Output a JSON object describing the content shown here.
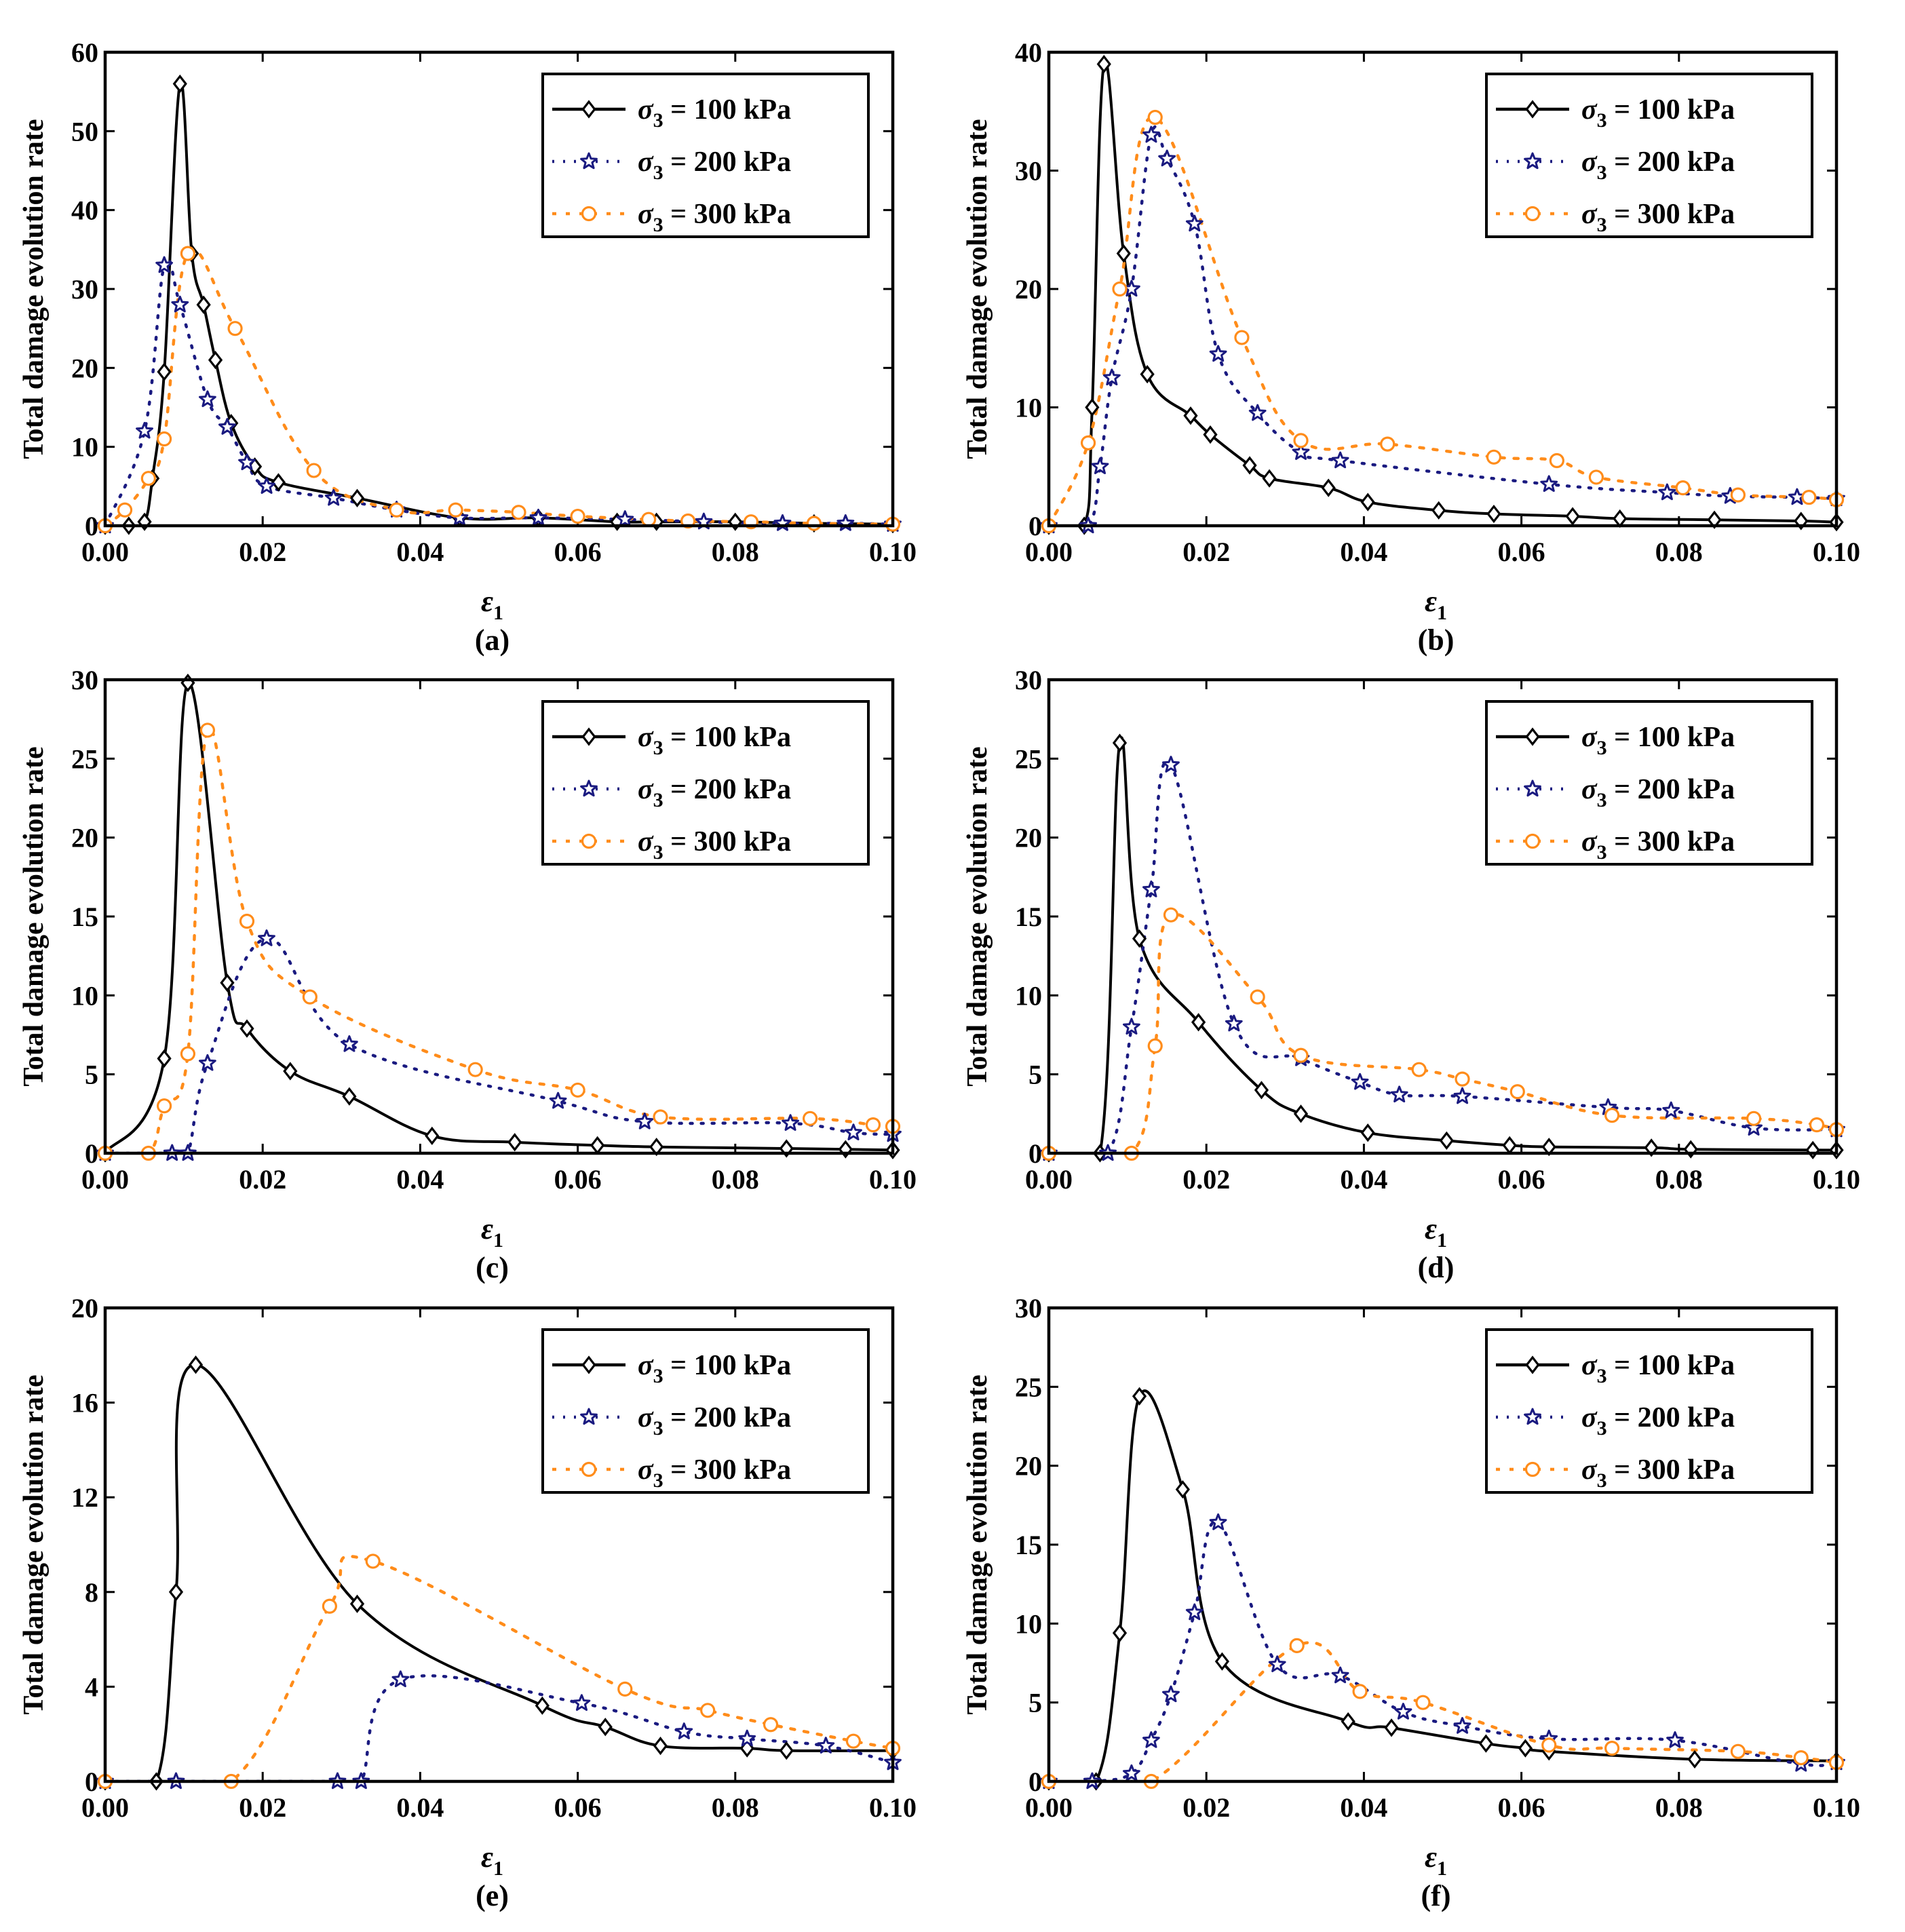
{
  "figure": {
    "colors": {
      "s100": "#000000",
      "s200": "#1a1a80",
      "s300": "#ff8c1a"
    },
    "legend_prefix": "σ",
    "legend_sub": "3",
    "xlabel_symbol": "ε",
    "xlabel_sub": "1"
  },
  "chart_data": [
    {
      "type": "line",
      "panel_label": "(a)",
      "ylabel": "Total damage evolution rate",
      "xlim": [
        0,
        0.1
      ],
      "ylim": [
        0,
        60
      ],
      "xticks": [
        "0.00",
        "0.02",
        "0.04",
        "0.06",
        "0.08",
        "0.10"
      ],
      "yticks": [
        "0",
        "10",
        "20",
        "30",
        "40",
        "50",
        "60"
      ],
      "series": [
        {
          "name": "σ3 = 100 kPa",
          "legend": " = 100 kPa",
          "marker": "diamond",
          "x": [
            0,
            0.003,
            0.005,
            0.006,
            0.0075,
            0.0095,
            0.011,
            0.0125,
            0.014,
            0.016,
            0.019,
            0.022,
            0.032,
            0.045,
            0.055,
            0.065,
            0.07,
            0.08,
            0.09,
            0.1
          ],
          "y": [
            0,
            0,
            0.5,
            6,
            19.5,
            56,
            34.5,
            28,
            21,
            13,
            7.5,
            5.5,
            3.5,
            1,
            1,
            0.5,
            0.5,
            0.5,
            0.3,
            0.2
          ]
        },
        {
          "name": "σ3 = 200 kPa",
          "legend": " = 200 kPa",
          "marker": "star",
          "x": [
            0,
            0.005,
            0.0075,
            0.0095,
            0.013,
            0.0155,
            0.018,
            0.0205,
            0.029,
            0.037,
            0.045,
            0.055,
            0.066,
            0.076,
            0.086,
            0.094,
            0.1
          ],
          "y": [
            0,
            12,
            33,
            28,
            16,
            12.5,
            8,
            5,
            3.5,
            2,
            1,
            1,
            0.8,
            0.5,
            0.3,
            0.3,
            0.2
          ]
        },
        {
          "name": "σ3 = 300 kPa",
          "legend": " = 300 kPa",
          "marker": "circle",
          "x": [
            0,
            0.0025,
            0.0055,
            0.0075,
            0.0105,
            0.0165,
            0.0265,
            0.037,
            0.0445,
            0.0525,
            0.06,
            0.069,
            0.074,
            0.082,
            0.09,
            0.1
          ],
          "y": [
            0,
            2,
            6,
            11,
            34.5,
            25,
            7,
            2,
            2,
            1.7,
            1.2,
            0.8,
            0.6,
            0.5,
            0.3,
            0.2
          ]
        }
      ]
    },
    {
      "type": "line",
      "panel_label": "(b)",
      "ylabel": "Total damage evolution rate",
      "xlim": [
        0,
        0.1
      ],
      "ylim": [
        0,
        40
      ],
      "xticks": [
        "0.00",
        "0.02",
        "0.04",
        "0.06",
        "0.08",
        "0.10"
      ],
      "yticks": [
        "0",
        "10",
        "20",
        "30",
        "40"
      ],
      "series": [
        {
          "name": "σ3 = 100 kPa",
          "legend": " = 100 kPa",
          "marker": "diamond",
          "x": [
            0,
            0.0045,
            0.0055,
            0.007,
            0.0095,
            0.0125,
            0.018,
            0.0205,
            0.0255,
            0.028,
            0.0355,
            0.0405,
            0.0495,
            0.0565,
            0.0665,
            0.0725,
            0.0845,
            0.0955,
            0.1
          ],
          "y": [
            0,
            0,
            10,
            39,
            23,
            12.8,
            9.3,
            7.7,
            5.1,
            4,
            3.2,
            2,
            1.3,
            1,
            0.8,
            0.6,
            0.5,
            0.4,
            0.3
          ]
        },
        {
          "name": "σ3 = 200 kPa",
          "legend": " = 200 kPa",
          "marker": "star",
          "x": [
            0,
            0.005,
            0.0065,
            0.008,
            0.0105,
            0.013,
            0.015,
            0.0185,
            0.0215,
            0.0265,
            0.032,
            0.037,
            0.0635,
            0.0785,
            0.0865,
            0.095,
            0.1
          ],
          "y": [
            0,
            0,
            5,
            12.5,
            20,
            33,
            31,
            25.5,
            14.5,
            9.5,
            6.2,
            5.5,
            3.5,
            2.8,
            2.5,
            2.4,
            2.3
          ]
        },
        {
          "name": "σ3 = 300 kPa",
          "legend": " = 300 kPa",
          "marker": "circle",
          "x": [
            0,
            0.005,
            0.009,
            0.0135,
            0.0245,
            0.032,
            0.043,
            0.0565,
            0.0645,
            0.0695,
            0.0805,
            0.0875,
            0.0965,
            0.1
          ],
          "y": [
            0,
            7,
            20,
            34.5,
            15.9,
            7.2,
            6.9,
            5.8,
            5.5,
            4.1,
            3.2,
            2.6,
            2.4,
            2.2
          ]
        }
      ]
    },
    {
      "type": "line",
      "panel_label": "(c)",
      "ylabel": "Total damage evolution rate",
      "xlim": [
        0,
        0.1
      ],
      "ylim": [
        0,
        30
      ],
      "xticks": [
        "0.00",
        "0.02",
        "0.04",
        "0.06",
        "0.08",
        "0.10"
      ],
      "yticks": [
        "0",
        "5",
        "10",
        "15",
        "20",
        "25",
        "30"
      ],
      "series": [
        {
          "name": "σ3 = 100 kPa",
          "legend": " = 100 kPa",
          "marker": "diamond",
          "x": [
            0,
            0.0075,
            0.0105,
            0.0155,
            0.018,
            0.0235,
            0.031,
            0.0415,
            0.052,
            0.0625,
            0.07,
            0.0865,
            0.094,
            0.1
          ],
          "y": [
            0,
            6,
            29.8,
            10.8,
            7.9,
            5.2,
            3.6,
            1.1,
            0.7,
            0.5,
            0.4,
            0.3,
            0.25,
            0.2
          ]
        },
        {
          "name": "σ3 = 200 kPa",
          "legend": " = 200 kPa",
          "marker": "star",
          "x": [
            0,
            0.0085,
            0.0105,
            0.013,
            0.0205,
            0.031,
            0.0575,
            0.0685,
            0.087,
            0.095,
            0.1
          ],
          "y": [
            0,
            0,
            0,
            5.7,
            13.6,
            6.9,
            3.3,
            2,
            1.9,
            1.3,
            1.2
          ]
        },
        {
          "name": "σ3 = 300 kPa",
          "legend": " = 300 kPa",
          "marker": "circle",
          "x": [
            0,
            0.0055,
            0.0075,
            0.0105,
            0.013,
            0.018,
            0.026,
            0.047,
            0.06,
            0.0705,
            0.0895,
            0.0975,
            0.1
          ],
          "y": [
            0,
            0,
            3,
            6.3,
            26.8,
            14.7,
            9.9,
            5.3,
            4,
            2.3,
            2.2,
            1.8,
            1.7
          ]
        }
      ]
    },
    {
      "type": "line",
      "panel_label": "(d)",
      "ylabel": "Total damage evolution rate",
      "xlim": [
        0,
        0.1
      ],
      "ylim": [
        0,
        30
      ],
      "xticks": [
        "0.00",
        "0.02",
        "0.04",
        "0.06",
        "0.08",
        "0.10"
      ],
      "yticks": [
        "0",
        "5",
        "10",
        "15",
        "20",
        "25",
        "30"
      ],
      "series": [
        {
          "name": "σ3 = 100 kPa",
          "legend": " = 100 kPa",
          "marker": "diamond",
          "x": [
            0,
            0.0065,
            0.009,
            0.0115,
            0.019,
            0.027,
            0.032,
            0.0405,
            0.0505,
            0.0585,
            0.0635,
            0.0765,
            0.0815,
            0.097,
            0.1
          ],
          "y": [
            0,
            0,
            26,
            13.6,
            8.3,
            4,
            2.5,
            1.3,
            0.8,
            0.5,
            0.4,
            0.35,
            0.25,
            0.2,
            0.2
          ]
        },
        {
          "name": "σ3 = 200 kPa",
          "legend": " = 200 kPa",
          "marker": "star",
          "x": [
            0,
            0.0075,
            0.0105,
            0.013,
            0.0155,
            0.0235,
            0.032,
            0.0395,
            0.0445,
            0.0525,
            0.071,
            0.079,
            0.0895,
            0.1
          ],
          "y": [
            0,
            0,
            8,
            16.7,
            24.6,
            8.2,
            6,
            4.5,
            3.7,
            3.6,
            2.9,
            2.7,
            1.6,
            1.5
          ]
        },
        {
          "name": "σ3 = 300 kPa",
          "legend": " = 300 kPa",
          "marker": "circle",
          "x": [
            0,
            0.0105,
            0.0135,
            0.0155,
            0.0265,
            0.032,
            0.047,
            0.0525,
            0.0595,
            0.0715,
            0.0895,
            0.0975,
            0.1
          ],
          "y": [
            0,
            0,
            6.8,
            15.1,
            9.9,
            6.2,
            5.3,
            4.7,
            3.9,
            2.4,
            2.2,
            1.8,
            1.5
          ]
        }
      ]
    },
    {
      "type": "line",
      "panel_label": "(e)",
      "ylabel": "Total damage evolution rate",
      "xlim": [
        0,
        0.1
      ],
      "ylim": [
        0,
        20
      ],
      "xticks": [
        "0.00",
        "0.02",
        "0.04",
        "0.06",
        "0.08",
        "0.10"
      ],
      "yticks": [
        "0",
        "4",
        "8",
        "12",
        "16",
        "20"
      ],
      "series": [
        {
          "name": "σ3 = 100 kPa",
          "legend": " = 100 kPa",
          "marker": "diamond",
          "x": [
            0,
            0.0065,
            0.009,
            0.0115,
            0.032,
            0.0555,
            0.0635,
            0.0705,
            0.0815,
            0.0865,
            0.1
          ],
          "y": [
            0,
            0,
            8,
            17.6,
            7.5,
            3.2,
            2.3,
            1.5,
            1.4,
            1.3,
            1.3
          ]
        },
        {
          "name": "σ3 = 200 kPa",
          "legend": " = 200 kPa",
          "marker": "star",
          "x": [
            0,
            0.009,
            0.0295,
            0.0325,
            0.0375,
            0.0605,
            0.0735,
            0.0815,
            0.0915,
            0.1
          ],
          "y": [
            0,
            0,
            0,
            0,
            4.3,
            3.3,
            2.1,
            1.8,
            1.5,
            0.8
          ]
        },
        {
          "name": "σ3 = 300 kPa",
          "legend": " = 300 kPa",
          "marker": "circle",
          "x": [
            0,
            0.016,
            0.0285,
            0.034,
            0.066,
            0.0765,
            0.0845,
            0.095,
            0.1
          ],
          "y": [
            0,
            0,
            7.4,
            9.3,
            3.9,
            3,
            2.4,
            1.7,
            1.4
          ]
        }
      ]
    },
    {
      "type": "line",
      "panel_label": "(f)",
      "ylabel": "Total damage evolution rate",
      "xlim": [
        0,
        0.1
      ],
      "ylim": [
        0,
        30
      ],
      "xticks": [
        "0.00",
        "0.02",
        "0.04",
        "0.06",
        "0.08",
        "0.10"
      ],
      "yticks": [
        "0",
        "5",
        "10",
        "15",
        "20",
        "25",
        "30"
      ],
      "series": [
        {
          "name": "σ3 = 100 kPa",
          "legend": " = 100 kPa",
          "marker": "diamond",
          "x": [
            0,
            0.006,
            0.009,
            0.0115,
            0.017,
            0.022,
            0.038,
            0.0435,
            0.0555,
            0.0605,
            0.0635,
            0.082,
            0.1
          ],
          "y": [
            0,
            0,
            9.4,
            24.4,
            18.5,
            7.6,
            3.8,
            3.4,
            2.4,
            2.1,
            1.9,
            1.4,
            1.3
          ]
        },
        {
          "name": "σ3 = 200 kPa",
          "legend": " = 200 kPa",
          "marker": "star",
          "x": [
            0,
            0.0055,
            0.0105,
            0.013,
            0.0155,
            0.0185,
            0.0215,
            0.029,
            0.037,
            0.045,
            0.0525,
            0.0635,
            0.0795,
            0.0955,
            0.1
          ],
          "y": [
            0,
            0,
            0.5,
            2.6,
            5.5,
            10.7,
            16.4,
            7.4,
            6.7,
            4.4,
            3.5,
            2.7,
            2.6,
            1.1,
            1.2
          ]
        },
        {
          "name": "σ3 = 300 kPa",
          "legend": " = 300 kPa",
          "marker": "circle",
          "x": [
            0,
            0.013,
            0.0315,
            0.0395,
            0.0475,
            0.0635,
            0.0715,
            0.0875,
            0.0955,
            0.1
          ],
          "y": [
            0,
            0,
            8.6,
            5.7,
            5,
            2.3,
            2.1,
            1.9,
            1.5,
            1.2
          ]
        }
      ]
    }
  ]
}
